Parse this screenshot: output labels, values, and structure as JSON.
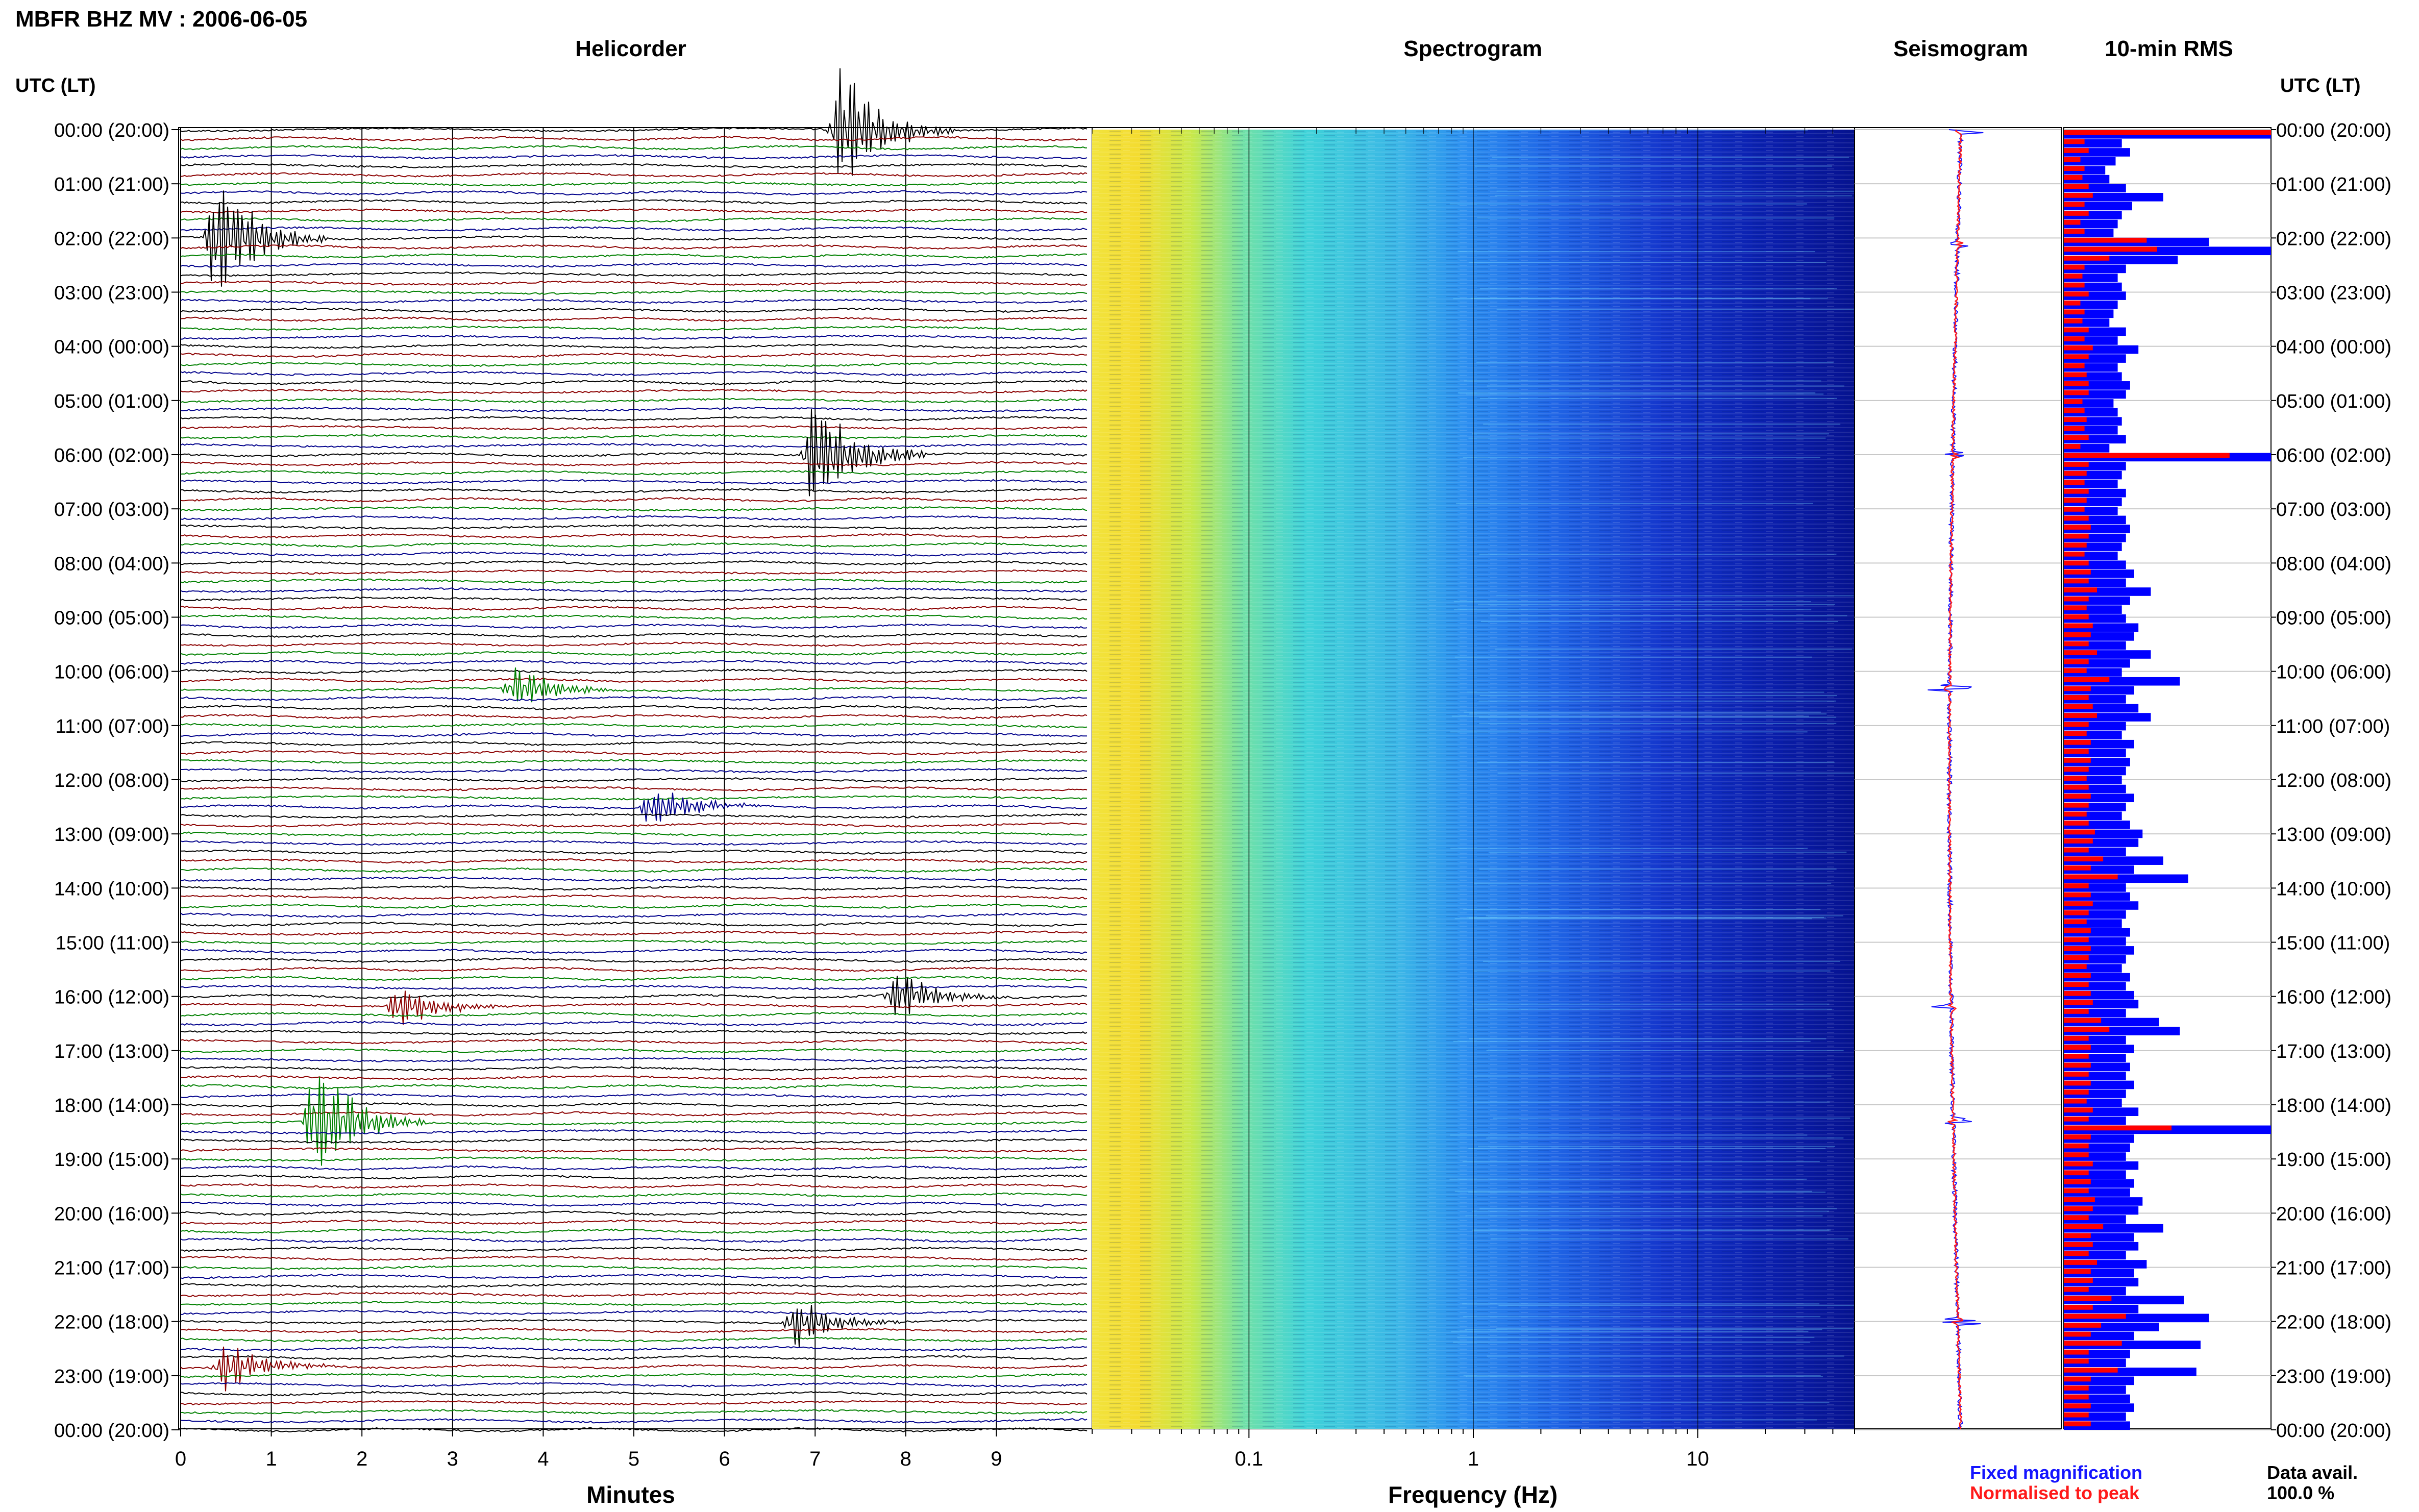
{
  "title": "MBFR BHZ MV : 2006-06-05",
  "panels": {
    "helicorder": "Helicorder",
    "spectrogram": "Spectrogram",
    "seismogram": "Seismogram",
    "rms": "10-min RMS"
  },
  "time_axis_label": "UTC (LT)",
  "time_labels": [
    "00:00 (20:00)",
    "01:00 (21:00)",
    "02:00 (22:00)",
    "03:00 (23:00)",
    "04:00 (00:00)",
    "05:00 (01:00)",
    "06:00 (02:00)",
    "07:00 (03:00)",
    "08:00 (04:00)",
    "09:00 (05:00)",
    "10:00 (06:00)",
    "11:00 (07:00)",
    "12:00 (08:00)",
    "13:00 (09:00)",
    "14:00 (10:00)",
    "15:00 (11:00)",
    "16:00 (12:00)",
    "17:00 (13:00)",
    "18:00 (14:00)",
    "19:00 (15:00)",
    "20:00 (16:00)",
    "21:00 (17:00)",
    "22:00 (18:00)",
    "23:00 (19:00)",
    "00:00 (20:00)"
  ],
  "helicorder_axis": {
    "label": "Minutes",
    "ticks": [
      "0",
      "1",
      "2",
      "3",
      "4",
      "5",
      "6",
      "7",
      "8",
      "9"
    ]
  },
  "spectrogram_axis": {
    "label": "Frequency (Hz)",
    "ticks": [
      "0.1",
      "1",
      "10"
    ],
    "scale": "log"
  },
  "legend": {
    "fixed": "Fixed magnification",
    "normalised": "Normalised to peak",
    "fixed_color": "#1515ff",
    "normalised_color": "#ff1a1a"
  },
  "data_avail": {
    "label": "Data avail.",
    "value": "100.0 %"
  },
  "colors": {
    "trace_cycle": [
      "#000000",
      "#8b0000",
      "#008000",
      "#00008b"
    ],
    "rms_fixed": "#0000ff",
    "rms_norm": "#ff0000"
  },
  "chart_data": {
    "type": "heatmap",
    "description_hours": 24,
    "helicorder": {
      "traces_per_hour": 6,
      "minutes_per_trace": 10,
      "events": [
        {
          "hour": 0.0,
          "minute": 7.3,
          "amplitude": "large"
        },
        {
          "hour": 2.0,
          "minute": 0.4,
          "amplitude": "large"
        },
        {
          "hour": 6.0,
          "minute": 7.0,
          "amplitude": "large"
        },
        {
          "hour": 10.3,
          "minute": 3.7,
          "amplitude": "medium"
        },
        {
          "hour": 12.5,
          "minute": 5.2,
          "amplitude": "medium"
        },
        {
          "hour": 16.0,
          "minute": 7.9,
          "amplitude": "medium"
        },
        {
          "hour": 16.2,
          "minute": 2.4,
          "amplitude": "medium"
        },
        {
          "hour": 18.3,
          "minute": 1.5,
          "amplitude": "large"
        },
        {
          "hour": 22.0,
          "minute": 6.8,
          "amplitude": "medium"
        },
        {
          "hour": 22.8,
          "minute": 0.5,
          "amplitude": "medium"
        }
      ]
    },
    "spectrogram": {
      "freq_min": 0.02,
      "freq_max": 50,
      "scale": "log"
    },
    "rms_10min": {
      "fixed": [
        1.0,
        0.28,
        0.32,
        0.25,
        0.2,
        0.22,
        0.3,
        0.48,
        0.33,
        0.28,
        0.26,
        0.24,
        0.7,
        1.0,
        0.55,
        0.3,
        0.26,
        0.28,
        0.3,
        0.26,
        0.24,
        0.22,
        0.3,
        0.26,
        0.36,
        0.3,
        0.26,
        0.28,
        0.32,
        0.3,
        0.24,
        0.26,
        0.28,
        0.26,
        0.3,
        0.22,
        1.0,
        0.3,
        0.28,
        0.26,
        0.3,
        0.28,
        0.26,
        0.3,
        0.32,
        0.3,
        0.28,
        0.26,
        0.3,
        0.34,
        0.3,
        0.42,
        0.32,
        0.28,
        0.3,
        0.36,
        0.34,
        0.3,
        0.42,
        0.32,
        0.28,
        0.56,
        0.34,
        0.3,
        0.36,
        0.42,
        0.3,
        0.28,
        0.34,
        0.3,
        0.32,
        0.3,
        0.28,
        0.3,
        0.34,
        0.3,
        0.28,
        0.32,
        0.38,
        0.36,
        0.3,
        0.48,
        0.34,
        0.6,
        0.3,
        0.32,
        0.36,
        0.3,
        0.28,
        0.32,
        0.3,
        0.34,
        0.3,
        0.28,
        0.32,
        0.3,
        0.34,
        0.36,
        0.3,
        0.46,
        0.56,
        0.3,
        0.34,
        0.3,
        0.32,
        0.3,
        0.34,
        0.3,
        0.28,
        0.36,
        0.3,
        1.0,
        0.34,
        0.32,
        0.3,
        0.36,
        0.3,
        0.34,
        0.32,
        0.38,
        0.36,
        0.3,
        0.48,
        0.34,
        0.36,
        0.3,
        0.4,
        0.34,
        0.36,
        0.3,
        0.58,
        0.36,
        0.7,
        0.46,
        0.34,
        0.66,
        0.32,
        0.3,
        0.64,
        0.34,
        0.3,
        0.32,
        0.34,
        0.3,
        0.32
      ],
      "normalised": [
        1.0,
        0.1,
        0.12,
        0.08,
        0.1,
        0.09,
        0.12,
        0.14,
        0.1,
        0.12,
        0.08,
        0.1,
        0.4,
        0.45,
        0.22,
        0.1,
        0.09,
        0.1,
        0.12,
        0.08,
        0.1,
        0.09,
        0.12,
        0.1,
        0.14,
        0.12,
        0.1,
        0.11,
        0.12,
        0.12,
        0.09,
        0.1,
        0.11,
        0.1,
        0.12,
        0.08,
        0.8,
        0.12,
        0.11,
        0.1,
        0.12,
        0.11,
        0.1,
        0.12,
        0.13,
        0.12,
        0.11,
        0.1,
        0.12,
        0.13,
        0.12,
        0.16,
        0.12,
        0.11,
        0.12,
        0.14,
        0.13,
        0.12,
        0.16,
        0.12,
        0.11,
        0.22,
        0.13,
        0.12,
        0.14,
        0.16,
        0.12,
        0.11,
        0.13,
        0.12,
        0.13,
        0.12,
        0.11,
        0.12,
        0.13,
        0.12,
        0.11,
        0.12,
        0.15,
        0.14,
        0.12,
        0.19,
        0.13,
        0.26,
        0.12,
        0.13,
        0.14,
        0.12,
        0.11,
        0.13,
        0.12,
        0.13,
        0.12,
        0.11,
        0.13,
        0.12,
        0.13,
        0.14,
        0.12,
        0.18,
        0.22,
        0.12,
        0.13,
        0.12,
        0.13,
        0.12,
        0.13,
        0.12,
        0.11,
        0.14,
        0.12,
        0.52,
        0.13,
        0.12,
        0.12,
        0.14,
        0.12,
        0.13,
        0.12,
        0.15,
        0.14,
        0.12,
        0.19,
        0.13,
        0.14,
        0.12,
        0.16,
        0.13,
        0.14,
        0.12,
        0.23,
        0.14,
        0.3,
        0.18,
        0.13,
        0.28,
        0.12,
        0.12,
        0.26,
        0.13,
        0.12,
        0.12,
        0.13,
        0.12,
        0.13
      ]
    }
  }
}
